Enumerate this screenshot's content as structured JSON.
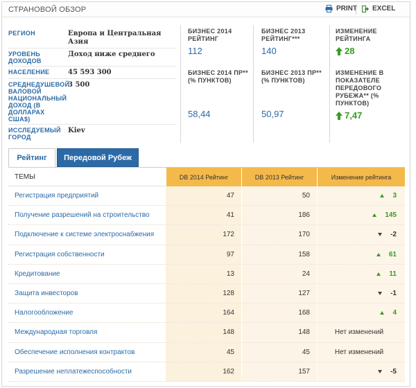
{
  "header": {
    "title": "СТРАНОВОЙ ОБЗОР",
    "print_label": "PRINT",
    "excel_label": "EXCEL"
  },
  "info": [
    {
      "label": "РЕГИОН",
      "value": "Европа и Центральная Азия"
    },
    {
      "label": "УРОВЕНЬ ДОХОДОВ",
      "value": "Доход ниже среднего"
    },
    {
      "label": "НАСЕЛЕНИЕ",
      "value": "45 593 300"
    },
    {
      "label": "СРЕДНЕДУШЕВОЙ ВАЛОВОЙ НАЦИОНАЛЬНЫЙ ДОХОД (В ДОЛЛАРАХ США$)",
      "value": "3 500"
    },
    {
      "label": "ИССЛЕДУЕМЫЙ ГОРОД",
      "value": "Kiev"
    }
  ],
  "metrics": {
    "rank2014": {
      "label": "БИЗНЕС 2014 РЕЙТИНГ",
      "value": "112"
    },
    "rank2013": {
      "label": "БИЗНЕС 2013 РЕЙТИНГ***",
      "value": "140"
    },
    "rank_change": {
      "label": "ИЗМЕНЕНИЕ РЕЙТИНГА",
      "value": "28"
    },
    "dtf2014": {
      "label": "БИЗНЕС 2014 ПР** (% ПУНКТОВ)",
      "value": "58,44"
    },
    "dtf2013": {
      "label": "БИЗНЕС 2013 ПР** (% ПУНКТОВ)",
      "value": "50,97"
    },
    "dtf_change": {
      "label": "ИЗМЕНЕНИЕ В ПОКАЗАТЕЛЕ ПЕРЕДОВОГО РУБЕЖА** (% ПУНКТОВ)",
      "value": "7,47"
    }
  },
  "tabs": [
    {
      "label": "Рейтинг",
      "active": true
    },
    {
      "label": "Передовой Рубеж",
      "active": false
    }
  ],
  "table": {
    "headers": {
      "theme": "ТЕМЫ",
      "db2014": "DB 2014 Рейтинг",
      "db2013": "DB 2013 Рейтинг",
      "change": "Изменение рейтинга"
    },
    "rows": [
      {
        "theme": "Регистрация предприятий",
        "db2014": "47",
        "db2013": "50",
        "dir": "up",
        "change": "3"
      },
      {
        "theme": "Получение разрешений на строительство",
        "db2014": "41",
        "db2013": "186",
        "dir": "up",
        "change": "145"
      },
      {
        "theme": "Подключение к системе электроснабжения",
        "db2014": "172",
        "db2013": "170",
        "dir": "down",
        "change": "-2"
      },
      {
        "theme": "Регистрация собственности",
        "db2014": "97",
        "db2013": "158",
        "dir": "up",
        "change": "61"
      },
      {
        "theme": "Кредитование",
        "db2014": "13",
        "db2013": "24",
        "dir": "up",
        "change": "11"
      },
      {
        "theme": "Защита инвесторов",
        "db2014": "128",
        "db2013": "127",
        "dir": "down",
        "change": "-1"
      },
      {
        "theme": "Налогообложение",
        "db2014": "164",
        "db2013": "168",
        "dir": "up",
        "change": "4"
      },
      {
        "theme": "Международная торговля",
        "db2014": "148",
        "db2013": "148",
        "dir": "none",
        "change": "Нет изменений"
      },
      {
        "theme": "Обеспечение исполнения контрактов",
        "db2014": "45",
        "db2013": "45",
        "dir": "none",
        "change": "Нет изменений"
      },
      {
        "theme": "Разрешение неплатежеспособности",
        "db2014": "162",
        "db2013": "157",
        "dir": "down",
        "change": "-5"
      }
    ]
  },
  "colors": {
    "accent_blue": "#2b6aa6",
    "positive_green": "#3a9a24",
    "header_orange": "#f4b94b"
  }
}
